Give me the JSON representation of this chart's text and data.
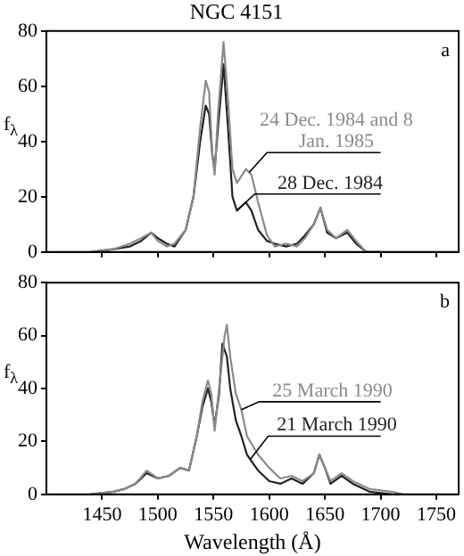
{
  "chart_data": [
    {
      "type": "line",
      "title": "NGC 4151",
      "ylabel": "f$_{λ}$",
      "annotations": [
        "a"
      ],
      "xlim": [
        1400,
        1770
      ],
      "xticks": [
        1450,
        1500,
        1550,
        1600,
        1650,
        1700,
        1750
      ],
      "ylim": [
        0,
        80
      ],
      "yticks": [
        0,
        20,
        40,
        60,
        80
      ],
      "tick_labels": "y",
      "grid": false,
      "legend": false,
      "marker": "none",
      "line_style": "solid",
      "series": [
        {
          "name": "24 Dec. 1984 and 8 Jan. 1985",
          "color": "#8a8a8a",
          "x": [
            1440,
            1460,
            1475,
            1485,
            1494,
            1500,
            1508,
            1515,
            1525,
            1532,
            1538,
            1543,
            1546,
            1549,
            1551,
            1554,
            1559,
            1563,
            1567,
            1571,
            1579,
            1584,
            1590,
            1598,
            1605,
            1615,
            1625,
            1632,
            1640,
            1646,
            1652,
            1660,
            1670,
            1678,
            1687,
            1700
          ],
          "values": [
            0,
            1,
            3,
            5,
            7,
            4,
            2,
            3,
            8,
            20,
            45,
            62,
            58,
            35,
            28,
            50,
            76,
            55,
            30,
            25,
            30,
            28,
            18,
            6,
            2,
            3,
            2,
            5,
            10,
            16,
            8,
            5,
            8,
            4,
            0,
            0
          ]
        },
        {
          "name": "28 Dec. 1984",
          "color": "#222222",
          "x": [
            1440,
            1460,
            1475,
            1485,
            1494,
            1500,
            1508,
            1515,
            1525,
            1532,
            1538,
            1543,
            1546,
            1549,
            1551,
            1554,
            1559,
            1563,
            1567,
            1571,
            1579,
            1584,
            1590,
            1598,
            1605,
            1615,
            1625,
            1632,
            1640,
            1646,
            1652,
            1660,
            1670,
            1678,
            1687,
            1700
          ],
          "values": [
            0,
            1,
            2,
            4,
            7,
            5,
            3,
            2,
            8,
            20,
            40,
            53,
            50,
            35,
            30,
            45,
            68,
            45,
            20,
            15,
            18,
            15,
            8,
            4,
            3,
            2,
            3,
            6,
            10,
            16,
            7,
            5,
            7,
            3,
            0,
            0
          ]
        }
      ]
    },
    {
      "type": "line",
      "xlabel": "Wavelength (Å)",
      "ylabel": "f$_{λ}$",
      "annotations": [
        "b"
      ],
      "xlim": [
        1400,
        1770
      ],
      "xticks": [
        1450,
        1500,
        1550,
        1600,
        1650,
        1700,
        1750
      ],
      "ylim": [
        0,
        80
      ],
      "yticks": [
        0,
        20,
        40,
        60,
        80
      ],
      "grid": false,
      "legend": false,
      "marker": "none",
      "line_style": "solid",
      "series": [
        {
          "name": "25 March 1990",
          "color": "#8a8a8a",
          "x": [
            1440,
            1460,
            1470,
            1480,
            1490,
            1500,
            1510,
            1520,
            1528,
            1535,
            1540,
            1545,
            1548,
            1551,
            1555,
            1560,
            1562,
            1565,
            1570,
            1575,
            1580,
            1590,
            1600,
            1610,
            1620,
            1630,
            1640,
            1645,
            1650,
            1655,
            1665,
            1675,
            1690,
            1710,
            1720
          ],
          "values": [
            0,
            1,
            2,
            4,
            9,
            6,
            7,
            10,
            9,
            22,
            35,
            43,
            38,
            24,
            40,
            60,
            64,
            52,
            38,
            32,
            22,
            15,
            10,
            6,
            7,
            5,
            8,
            15,
            10,
            5,
            8,
            5,
            2,
            1,
            0
          ]
        },
        {
          "name": "21 March 1990",
          "color": "#222222",
          "x": [
            1440,
            1460,
            1470,
            1480,
            1490,
            1500,
            1510,
            1520,
            1528,
            1535,
            1540,
            1545,
            1548,
            1551,
            1555,
            1558,
            1562,
            1565,
            1570,
            1575,
            1580,
            1590,
            1600,
            1610,
            1620,
            1630,
            1640,
            1645,
            1650,
            1655,
            1665,
            1675,
            1690,
            1710
          ],
          "values": [
            0,
            1,
            2,
            4,
            8,
            6,
            7,
            10,
            9,
            22,
            33,
            40,
            35,
            26,
            38,
            57,
            52,
            40,
            28,
            22,
            15,
            9,
            5,
            4,
            6,
            4,
            8,
            15,
            10,
            4,
            7,
            4,
            1,
            0
          ]
        }
      ]
    }
  ]
}
